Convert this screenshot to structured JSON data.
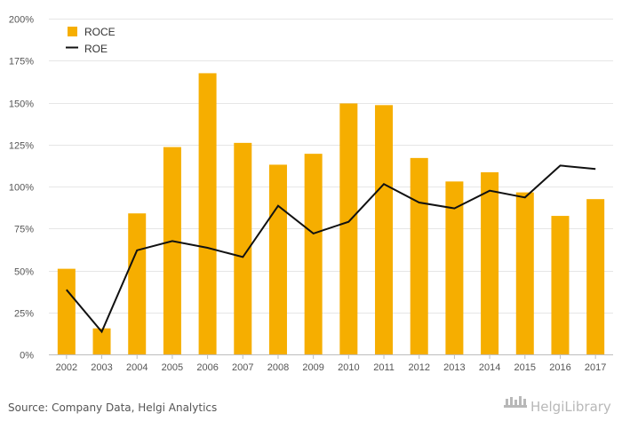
{
  "chart_data": {
    "type": "bar",
    "categories": [
      "2002",
      "2003",
      "2004",
      "2005",
      "2006",
      "2007",
      "2008",
      "2009",
      "2010",
      "2011",
      "2012",
      "2013",
      "2014",
      "2015",
      "2016",
      "2017"
    ],
    "series": [
      {
        "name": "ROCE",
        "type": "bar",
        "color": "#f6ae00",
        "values": [
          51,
          15.5,
          84,
          123.5,
          167.5,
          126,
          113,
          119.5,
          149.5,
          148.5,
          117,
          103,
          108.5,
          96.5,
          82.5,
          92.5
        ]
      },
      {
        "name": "ROE",
        "type": "line",
        "color": "#111111",
        "values": [
          38.5,
          13.5,
          62,
          67.5,
          63.5,
          58,
          88.5,
          72,
          79,
          101.5,
          90.5,
          87,
          97.5,
          93.5,
          112.5,
          110.5
        ]
      }
    ],
    "title": "",
    "xlabel": "",
    "ylabel": "",
    "ylim": [
      0,
      200
    ],
    "yticks": [
      "0%",
      "25%",
      "50%",
      "75%",
      "100%",
      "125%",
      "150%",
      "175%",
      "200%"
    ],
    "grid": true,
    "legend_position": "top-left"
  },
  "footer": {
    "source": "Source: Company Data, Helgi Analytics",
    "logo_icon": "helgi-library-logo-icon",
    "logo_text": "HelgiLibrary"
  }
}
